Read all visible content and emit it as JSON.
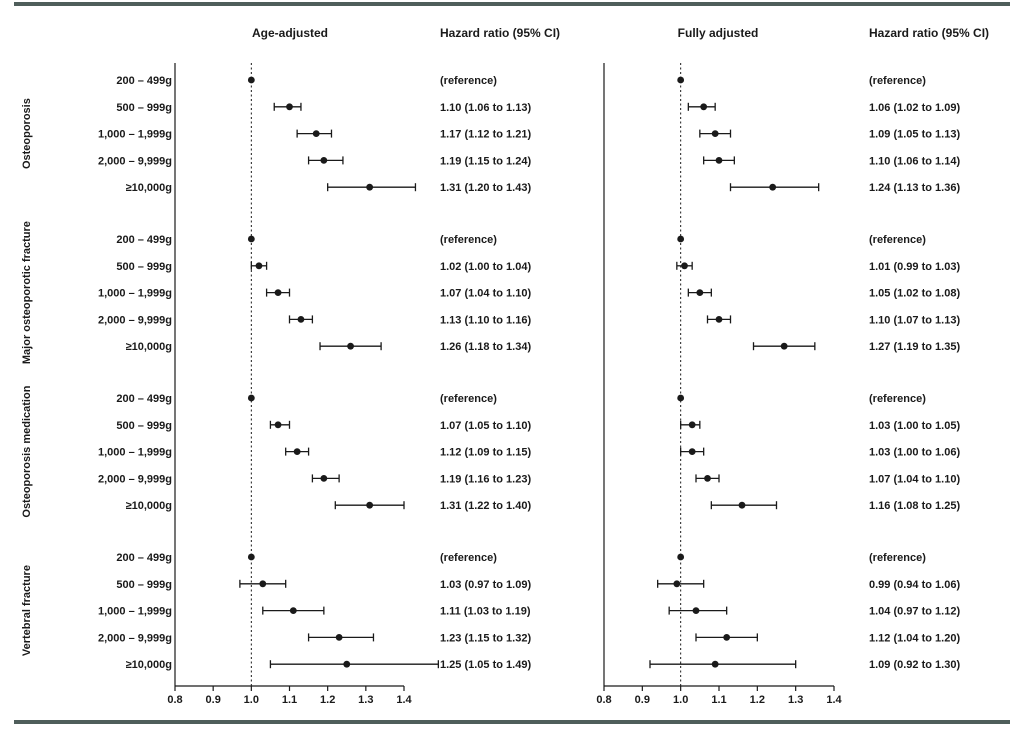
{
  "colors": {
    "rule": "#4f5e5b",
    "ink": "#1a1a1a"
  },
  "chart_data": [
    {
      "type": "forest",
      "title": "Age-adjusted",
      "ci_header": "Hazard ratio  (95% CI)",
      "xlim": [
        0.8,
        1.4
      ],
      "xticks": [
        "0.8",
        "0.9",
        "1.0",
        "1.1",
        "1.2",
        "1.3",
        "1.4"
      ],
      "reference_line": 1.0,
      "groups": [
        {
          "name": "Osteoporosis",
          "rows": [
            {
              "label": "200 – 499g",
              "hr": 1.0,
              "lo": null,
              "hi": null,
              "text": "(reference)"
            },
            {
              "label": "500 – 999g",
              "hr": 1.1,
              "lo": 1.06,
              "hi": 1.13,
              "text": "1.10 (1.06 to 1.13)"
            },
            {
              "label": "1,000 – 1,999g",
              "hr": 1.17,
              "lo": 1.12,
              "hi": 1.21,
              "text": "1.17 (1.12 to 1.21)"
            },
            {
              "label": "2,000 – 9,999g",
              "hr": 1.19,
              "lo": 1.15,
              "hi": 1.24,
              "text": "1.19 (1.15 to 1.24)"
            },
            {
              "label": "≥10,000g",
              "hr": 1.31,
              "lo": 1.2,
              "hi": 1.43,
              "text": "1.31 (1.20 to 1.43)"
            }
          ]
        },
        {
          "name": "Major osteoporotic fracture",
          "rows": [
            {
              "label": "200 – 499g",
              "hr": 1.0,
              "lo": null,
              "hi": null,
              "text": "(reference)"
            },
            {
              "label": "500 – 999g",
              "hr": 1.02,
              "lo": 1.0,
              "hi": 1.04,
              "text": "1.02 (1.00 to 1.04)"
            },
            {
              "label": "1,000 – 1,999g",
              "hr": 1.07,
              "lo": 1.04,
              "hi": 1.1,
              "text": "1.07 (1.04 to 1.10)"
            },
            {
              "label": "2,000 – 9,999g",
              "hr": 1.13,
              "lo": 1.1,
              "hi": 1.16,
              "text": "1.13 (1.10 to 1.16)"
            },
            {
              "label": "≥10,000g",
              "hr": 1.26,
              "lo": 1.18,
              "hi": 1.34,
              "text": "1.26 (1.18 to 1.34)"
            }
          ]
        },
        {
          "name": "Osteoporosis medication",
          "rows": [
            {
              "label": "200 – 499g",
              "hr": 1.0,
              "lo": null,
              "hi": null,
              "text": "(reference)"
            },
            {
              "label": "500 – 999g",
              "hr": 1.07,
              "lo": 1.05,
              "hi": 1.1,
              "text": "1.07 (1.05 to 1.10)"
            },
            {
              "label": "1,000 – 1,999g",
              "hr": 1.12,
              "lo": 1.09,
              "hi": 1.15,
              "text": "1.12 (1.09 to 1.15)"
            },
            {
              "label": "2,000 – 9,999g",
              "hr": 1.19,
              "lo": 1.16,
              "hi": 1.23,
              "text": "1.19 (1.16 to 1.23)"
            },
            {
              "label": "≥10,000g",
              "hr": 1.31,
              "lo": 1.22,
              "hi": 1.4,
              "text": "1.31 (1.22 to 1.40)"
            }
          ]
        },
        {
          "name": "Vertebral fracture",
          "rows": [
            {
              "label": "200 – 499g",
              "hr": 1.0,
              "lo": null,
              "hi": null,
              "text": "(reference)"
            },
            {
              "label": "500 – 999g",
              "hr": 1.03,
              "lo": 0.97,
              "hi": 1.09,
              "text": "1.03 (0.97 to 1.09)"
            },
            {
              "label": "1,000 – 1,999g",
              "hr": 1.11,
              "lo": 1.03,
              "hi": 1.19,
              "text": "1.11 (1.03 to 1.19)"
            },
            {
              "label": "2,000 – 9,999g",
              "hr": 1.23,
              "lo": 1.15,
              "hi": 1.32,
              "text": "1.23 (1.15 to 1.32)"
            },
            {
              "label": "≥10,000g",
              "hr": 1.25,
              "lo": 1.05,
              "hi": 1.49,
              "text": "1.25 (1.05 to 1.49)"
            }
          ]
        }
      ]
    },
    {
      "type": "forest",
      "title": "Fully adjusted",
      "ci_header": "Hazard ratio  (95% CI)",
      "xlim": [
        0.8,
        1.4
      ],
      "xticks": [
        "0.8",
        "0.9",
        "1.0",
        "1.1",
        "1.2",
        "1.3",
        "1.4"
      ],
      "reference_line": 1.0,
      "groups": [
        {
          "name": "Osteoporosis",
          "rows": [
            {
              "label": "200 – 499g",
              "hr": 1.0,
              "lo": null,
              "hi": null,
              "text": "(reference)"
            },
            {
              "label": "500 – 999g",
              "hr": 1.06,
              "lo": 1.02,
              "hi": 1.09,
              "text": "1.06 (1.02 to 1.09)"
            },
            {
              "label": "1,000 – 1,999g",
              "hr": 1.09,
              "lo": 1.05,
              "hi": 1.13,
              "text": "1.09 (1.05 to 1.13)"
            },
            {
              "label": "2,000 – 9,999g",
              "hr": 1.1,
              "lo": 1.06,
              "hi": 1.14,
              "text": "1.10 (1.06 to 1.14)"
            },
            {
              "label": "≥10,000g",
              "hr": 1.24,
              "lo": 1.13,
              "hi": 1.36,
              "text": "1.24 (1.13 to 1.36)"
            }
          ]
        },
        {
          "name": "Major osteoporotic fracture",
          "rows": [
            {
              "label": "200 – 499g",
              "hr": 1.0,
              "lo": null,
              "hi": null,
              "text": "(reference)"
            },
            {
              "label": "500 – 999g",
              "hr": 1.01,
              "lo": 0.99,
              "hi": 1.03,
              "text": "1.01 (0.99 to 1.03)"
            },
            {
              "label": "1,000 – 1,999g",
              "hr": 1.05,
              "lo": 1.02,
              "hi": 1.08,
              "text": "1.05 (1.02 to 1.08)"
            },
            {
              "label": "2,000 – 9,999g",
              "hr": 1.1,
              "lo": 1.07,
              "hi": 1.13,
              "text": "1.10 (1.07 to 1.13)"
            },
            {
              "label": "≥10,000g",
              "hr": 1.27,
              "lo": 1.19,
              "hi": 1.35,
              "text": "1.27 (1.19 to 1.35)"
            }
          ]
        },
        {
          "name": "Osteoporosis medication",
          "rows": [
            {
              "label": "200 – 499g",
              "hr": 1.0,
              "lo": null,
              "hi": null,
              "text": "(reference)"
            },
            {
              "label": "500 – 999g",
              "hr": 1.03,
              "lo": 1.0,
              "hi": 1.05,
              "text": "1.03 (1.00 to 1.05)"
            },
            {
              "label": "1,000 – 1,999g",
              "hr": 1.03,
              "lo": 1.0,
              "hi": 1.06,
              "text": "1.03 (1.00 to 1.06)"
            },
            {
              "label": "2,000 – 9,999g",
              "hr": 1.07,
              "lo": 1.04,
              "hi": 1.1,
              "text": "1.07 (1.04 to 1.10)"
            },
            {
              "label": "≥10,000g",
              "hr": 1.16,
              "lo": 1.08,
              "hi": 1.25,
              "text": "1.16 (1.08 to 1.25)"
            }
          ]
        },
        {
          "name": "Vertebral fracture",
          "rows": [
            {
              "label": "200 – 499g",
              "hr": 1.0,
              "lo": null,
              "hi": null,
              "text": "(reference)"
            },
            {
              "label": "500 – 999g",
              "hr": 0.99,
              "lo": 0.94,
              "hi": 1.06,
              "text": "0.99 (0.94 to 1.06)"
            },
            {
              "label": "1,000 – 1,999g",
              "hr": 1.04,
              "lo": 0.97,
              "hi": 1.12,
              "text": "1.04 (0.97 to 1.12)"
            },
            {
              "label": "2,000 – 9,999g",
              "hr": 1.12,
              "lo": 1.04,
              "hi": 1.2,
              "text": "1.12 (1.04 to 1.20)"
            },
            {
              "label": "≥10,000g",
              "hr": 1.09,
              "lo": 0.92,
              "hi": 1.3,
              "text": "1.09 (0.92 to 1.30)"
            }
          ]
        }
      ]
    }
  ]
}
